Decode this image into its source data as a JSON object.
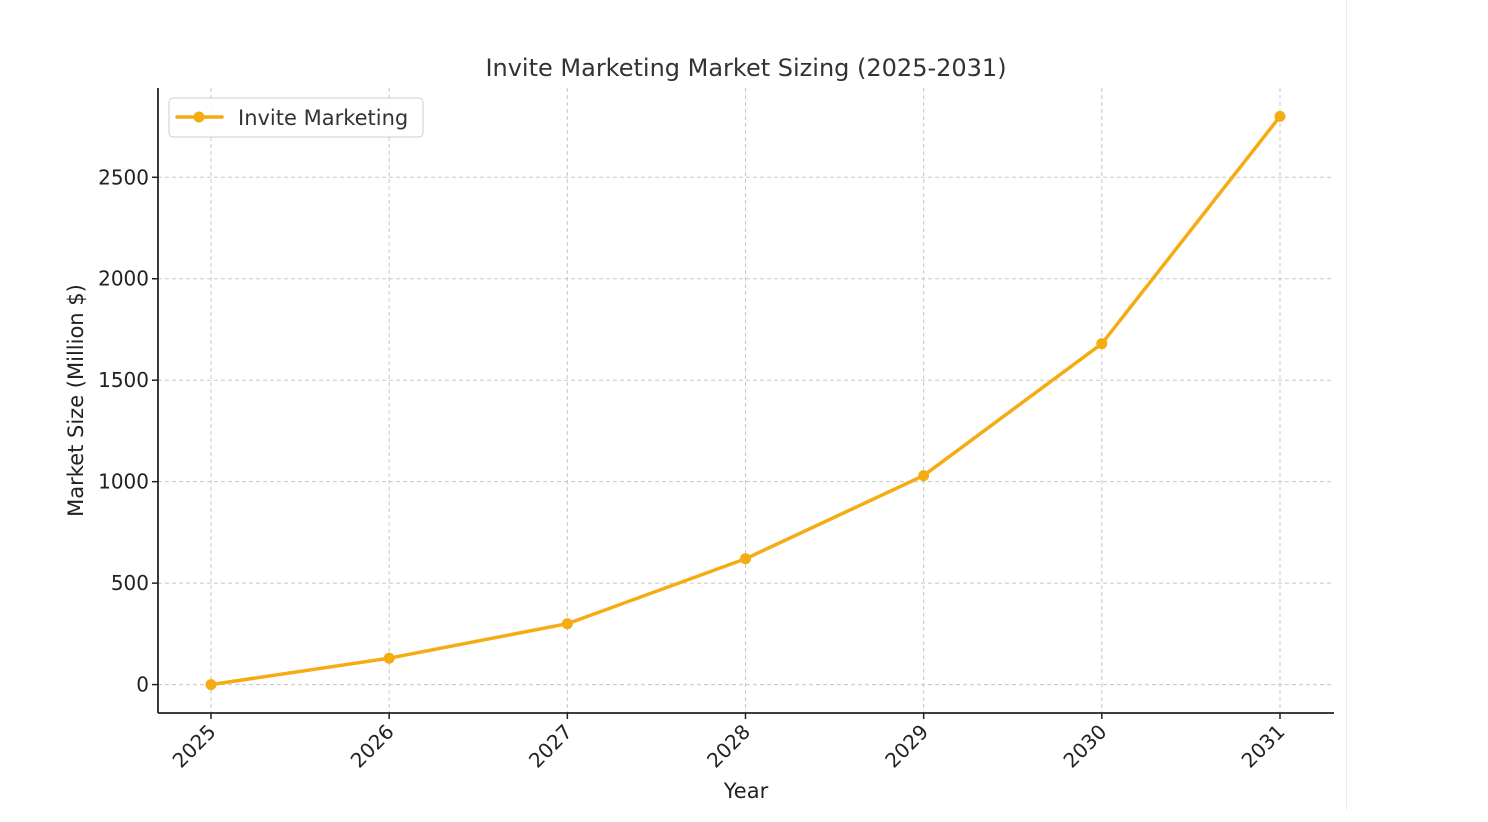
{
  "chart_data": {
    "type": "line",
    "title": "Invite Marketing Market Sizing (2025-2031)",
    "xlabel": "Year",
    "ylabel": "Market Size (Million $)",
    "categories": [
      "2025",
      "2026",
      "2027",
      "2028",
      "2029",
      "2030",
      "2031"
    ],
    "series": [
      {
        "name": "Invite Marketing",
        "values": [
          0,
          130,
          300,
          620,
          1030,
          1680,
          2800
        ],
        "color": "#f5ac13"
      }
    ],
    "yticks": [
      0,
      500,
      1000,
      1500,
      2000,
      2500
    ],
    "ylim": [
      -140,
      2940
    ],
    "grid": true,
    "legend_position": "top-left"
  }
}
